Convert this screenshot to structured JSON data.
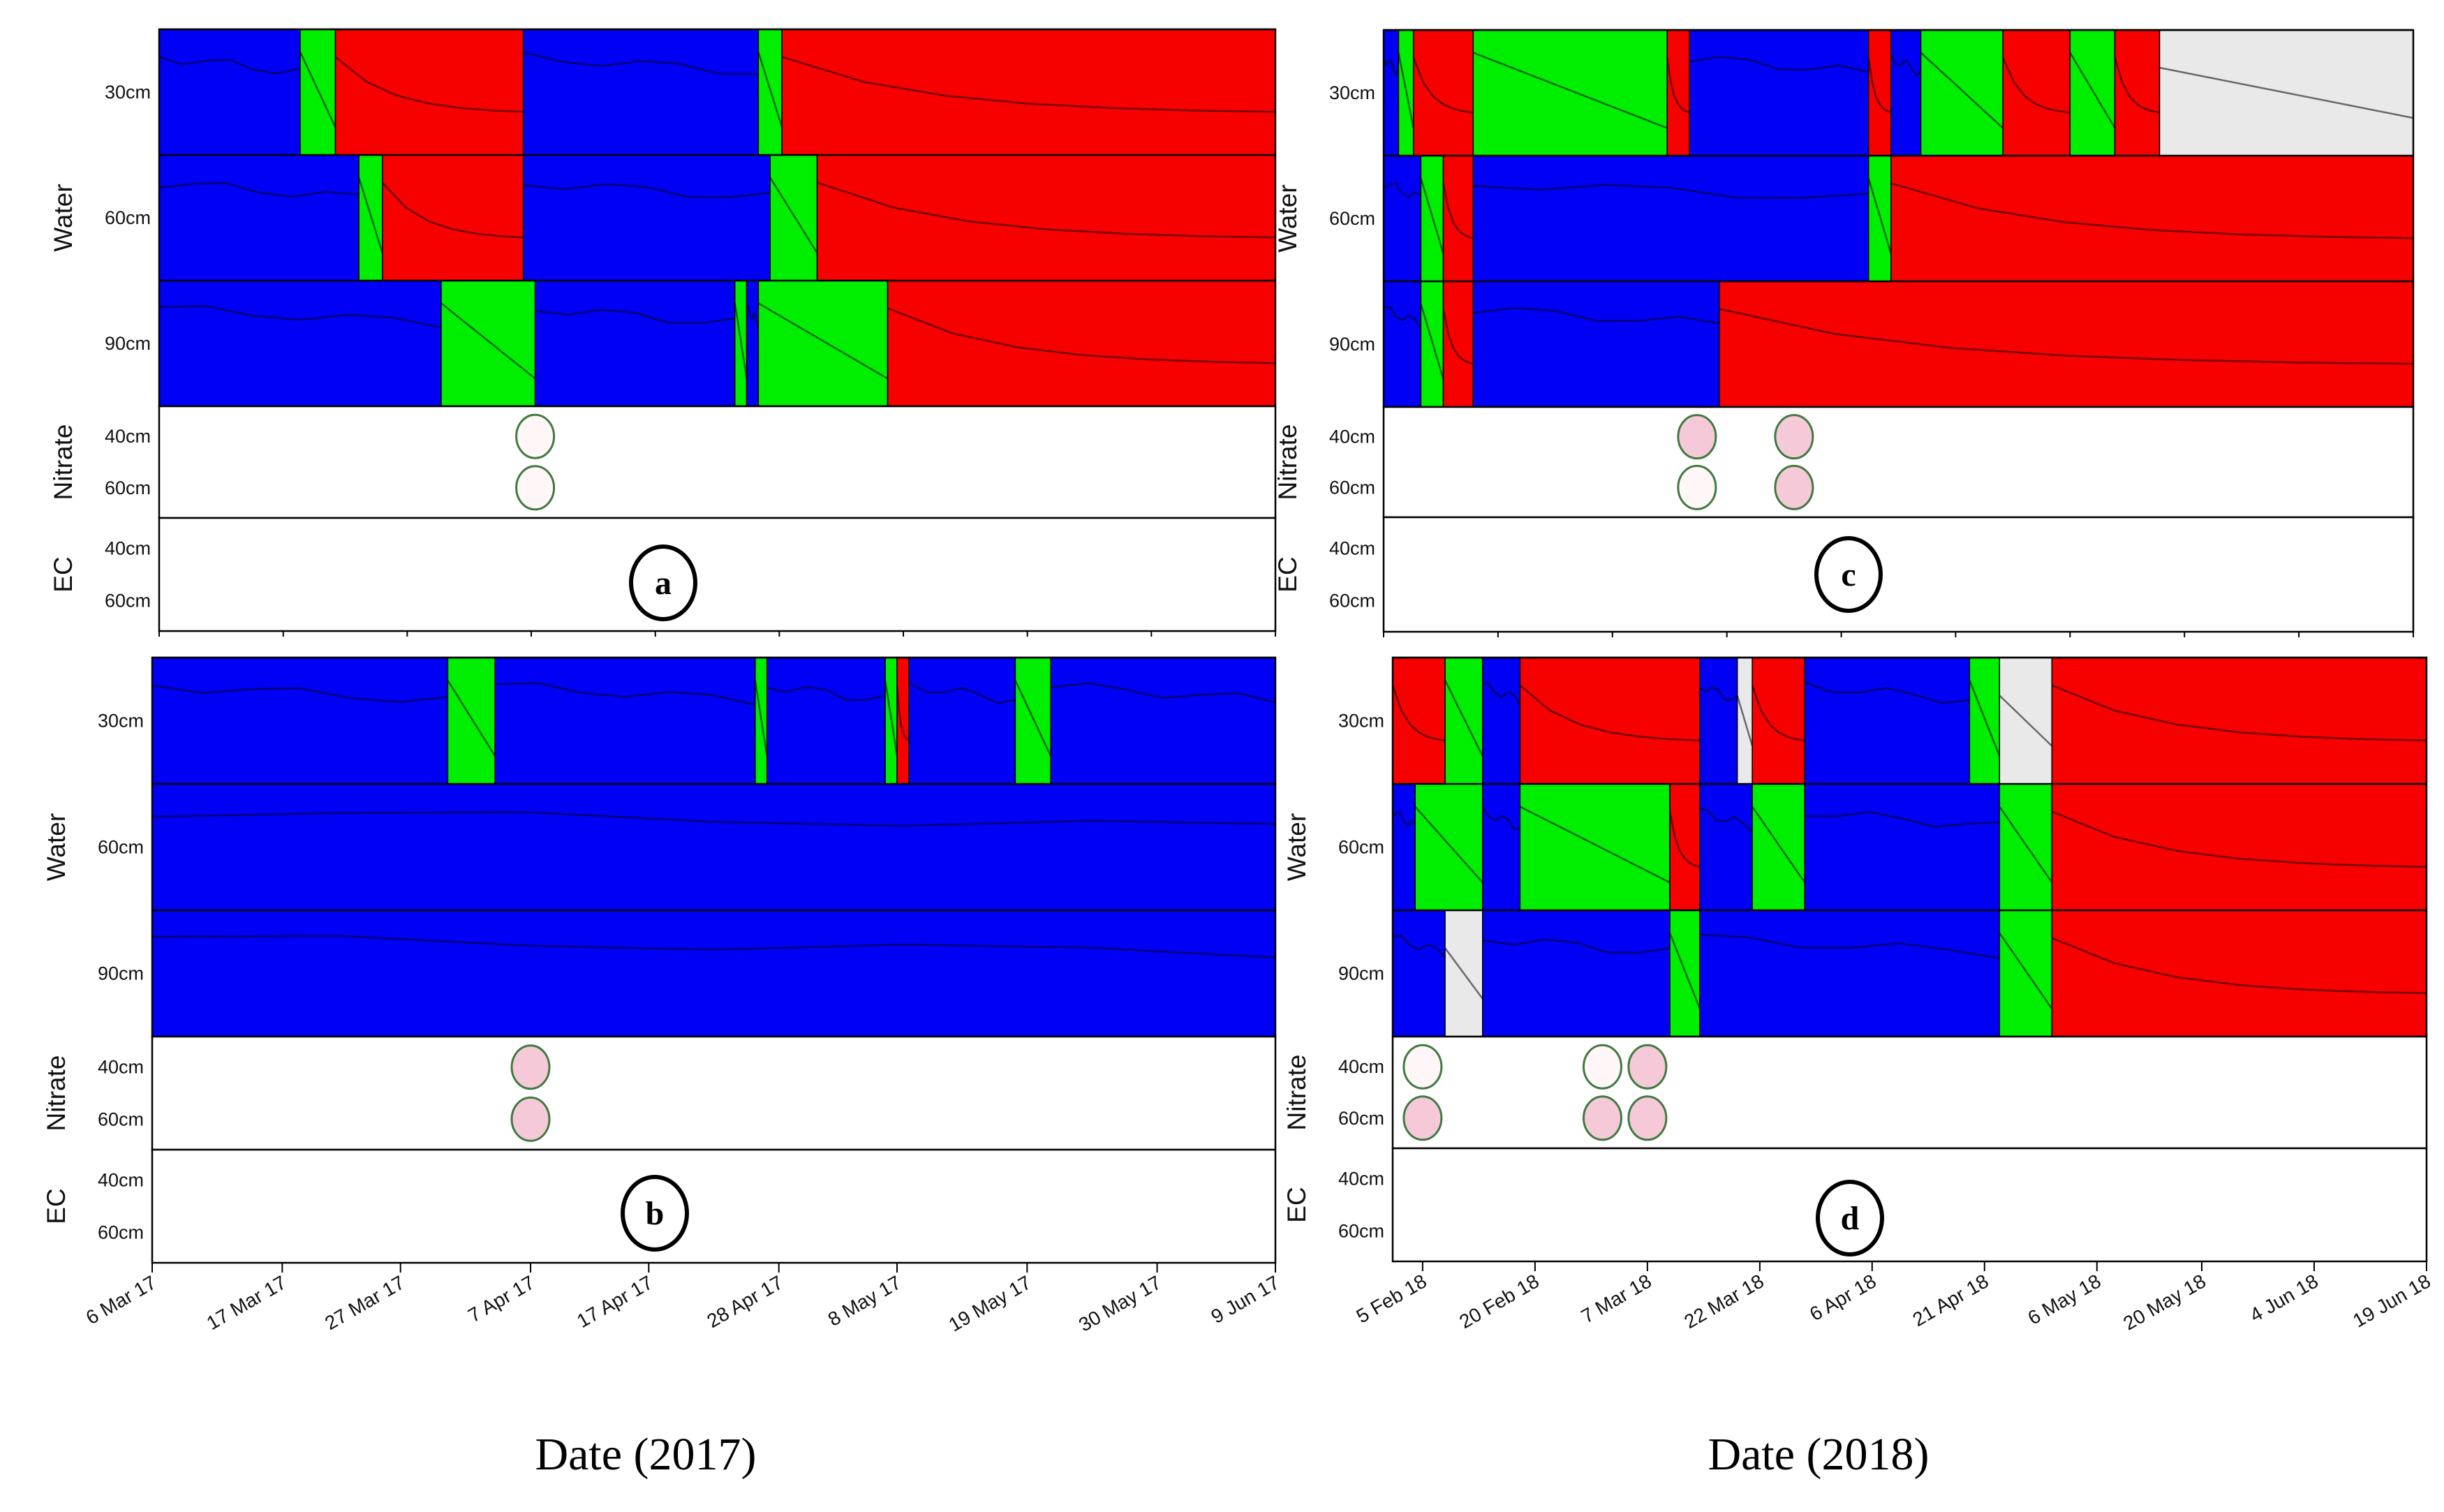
{
  "labels": {
    "water": "Water",
    "nitrate": "Nitrate",
    "ec": "EC",
    "water_depths": [
      "30cm",
      "60cm",
      "90cm"
    ],
    "sensor_depths": [
      "40cm",
      "60cm"
    ]
  },
  "colors": {
    "blue": "#0000f5",
    "green": "#00ee00",
    "red": "#f70000",
    "grey": "#e9e9e9",
    "nitrate_pink": "#f6c9d8",
    "nitrate_pale": "#fff6f8",
    "circle_stroke": "#3f7a3f"
  },
  "chart_data": [
    {
      "type": "timeline",
      "panel": "a",
      "year": 2017,
      "x_range": [
        "2017-03-06",
        "2017-06-09"
      ],
      "rows": {
        "water_30cm": [
          {
            "from": "2017-03-06",
            "to": "2017-03-18",
            "state": "blue"
          },
          {
            "from": "2017-03-18",
            "to": "2017-03-21",
            "state": "green"
          },
          {
            "from": "2017-03-21",
            "to": "2017-04-06",
            "state": "red"
          },
          {
            "from": "2017-04-06",
            "to": "2017-04-26",
            "state": "blue"
          },
          {
            "from": "2017-04-26",
            "to": "2017-04-28",
            "state": "green"
          },
          {
            "from": "2017-04-28",
            "to": "2017-06-09",
            "state": "red"
          }
        ],
        "water_60cm": [
          {
            "from": "2017-03-06",
            "to": "2017-03-23",
            "state": "blue"
          },
          {
            "from": "2017-03-23",
            "to": "2017-03-25",
            "state": "green"
          },
          {
            "from": "2017-03-25",
            "to": "2017-04-06",
            "state": "red"
          },
          {
            "from": "2017-04-06",
            "to": "2017-04-27",
            "state": "blue"
          },
          {
            "from": "2017-04-27",
            "to": "2017-05-01",
            "state": "green"
          },
          {
            "from": "2017-05-01",
            "to": "2017-06-09",
            "state": "red"
          }
        ],
        "water_90cm": [
          {
            "from": "2017-03-06",
            "to": "2017-03-30",
            "state": "blue"
          },
          {
            "from": "2017-03-30",
            "to": "2017-04-07",
            "state": "green"
          },
          {
            "from": "2017-04-07",
            "to": "2017-04-24",
            "state": "blue"
          },
          {
            "from": "2017-04-24",
            "to": "2017-04-25",
            "state": "green"
          },
          {
            "from": "2017-04-25",
            "to": "2017-04-26",
            "state": "blue"
          },
          {
            "from": "2017-04-26",
            "to": "2017-05-07",
            "state": "green"
          },
          {
            "from": "2017-05-07",
            "to": "2017-06-09",
            "state": "red"
          }
        ]
      },
      "nitrate": [
        {
          "date": "2017-04-07",
          "depth": "40cm",
          "level": "low"
        },
        {
          "date": "2017-04-07",
          "depth": "60cm",
          "level": "low"
        }
      ],
      "ec": []
    },
    {
      "type": "timeline",
      "panel": "b",
      "year": 2017,
      "x_range": [
        "2017-03-06",
        "2017-06-09"
      ],
      "x_ticks": [
        "6 Mar 17",
        "17 Mar 17",
        "27 Mar 17",
        "7 Apr 17",
        "17 Apr 17",
        "28 Apr 17",
        "8 May 17",
        "19 May 17",
        "30 May 17",
        "9 Jun 17"
      ],
      "rows": {
        "water_30cm": [
          {
            "from": "2017-03-06",
            "to": "2017-03-31",
            "state": "blue"
          },
          {
            "from": "2017-03-31",
            "to": "2017-04-04",
            "state": "green"
          },
          {
            "from": "2017-04-04",
            "to": "2017-04-26",
            "state": "blue"
          },
          {
            "from": "2017-04-26",
            "to": "2017-04-27",
            "state": "green"
          },
          {
            "from": "2017-04-27",
            "to": "2017-05-07",
            "state": "blue"
          },
          {
            "from": "2017-05-07",
            "to": "2017-05-08",
            "state": "green"
          },
          {
            "from": "2017-05-08",
            "to": "2017-05-09",
            "state": "red"
          },
          {
            "from": "2017-05-09",
            "to": "2017-05-18",
            "state": "blue"
          },
          {
            "from": "2017-05-18",
            "to": "2017-05-21",
            "state": "green"
          },
          {
            "from": "2017-05-21",
            "to": "2017-06-09",
            "state": "blue"
          }
        ],
        "water_60cm": [
          {
            "from": "2017-03-06",
            "to": "2017-06-09",
            "state": "blue"
          }
        ],
        "water_90cm": [
          {
            "from": "2017-03-06",
            "to": "2017-06-09",
            "state": "blue"
          }
        ]
      },
      "nitrate": [
        {
          "date": "2017-04-07",
          "depth": "40cm",
          "level": "high"
        },
        {
          "date": "2017-04-07",
          "depth": "60cm",
          "level": "high"
        }
      ],
      "ec": []
    },
    {
      "type": "timeline",
      "panel": "c",
      "year": 2018,
      "x_range": [
        "2018-02-01",
        "2018-06-19"
      ],
      "rows": {
        "water_30cm": [
          {
            "from": "2018-02-01",
            "to": "2018-02-03",
            "state": "blue"
          },
          {
            "from": "2018-02-03",
            "to": "2018-02-05",
            "state": "green"
          },
          {
            "from": "2018-02-05",
            "to": "2018-02-13",
            "state": "red"
          },
          {
            "from": "2018-02-13",
            "to": "2018-03-11",
            "state": "green"
          },
          {
            "from": "2018-03-11",
            "to": "2018-03-14",
            "state": "red"
          },
          {
            "from": "2018-03-14",
            "to": "2018-04-07",
            "state": "blue"
          },
          {
            "from": "2018-04-07",
            "to": "2018-04-10",
            "state": "red"
          },
          {
            "from": "2018-04-10",
            "to": "2018-04-14",
            "state": "blue"
          },
          {
            "from": "2018-04-14",
            "to": "2018-04-25",
            "state": "green"
          },
          {
            "from": "2018-04-25",
            "to": "2018-05-04",
            "state": "red"
          },
          {
            "from": "2018-05-04",
            "to": "2018-05-10",
            "state": "green"
          },
          {
            "from": "2018-05-10",
            "to": "2018-05-16",
            "state": "red"
          },
          {
            "from": "2018-05-16",
            "to": "2018-06-19",
            "state": "grey"
          }
        ],
        "water_60cm": [
          {
            "from": "2018-02-01",
            "to": "2018-02-06",
            "state": "blue"
          },
          {
            "from": "2018-02-06",
            "to": "2018-02-09",
            "state": "green"
          },
          {
            "from": "2018-02-09",
            "to": "2018-02-13",
            "state": "red"
          },
          {
            "from": "2018-02-13",
            "to": "2018-04-07",
            "state": "blue"
          },
          {
            "from": "2018-04-07",
            "to": "2018-04-10",
            "state": "green"
          },
          {
            "from": "2018-04-10",
            "to": "2018-06-19",
            "state": "red"
          }
        ],
        "water_90cm": [
          {
            "from": "2018-02-01",
            "to": "2018-02-06",
            "state": "blue"
          },
          {
            "from": "2018-02-06",
            "to": "2018-02-09",
            "state": "green"
          },
          {
            "from": "2018-02-09",
            "to": "2018-02-13",
            "state": "red"
          },
          {
            "from": "2018-02-13",
            "to": "2018-03-18",
            "state": "blue"
          },
          {
            "from": "2018-03-18",
            "to": "2018-06-19",
            "state": "red"
          }
        ]
      },
      "nitrate": [
        {
          "date": "2018-03-15",
          "depth": "40cm",
          "level": "high"
        },
        {
          "date": "2018-03-15",
          "depth": "60cm",
          "level": "low"
        },
        {
          "date": "2018-03-28",
          "depth": "40cm",
          "level": "high"
        },
        {
          "date": "2018-03-28",
          "depth": "60cm",
          "level": "high"
        }
      ],
      "ec": []
    },
    {
      "type": "timeline",
      "panel": "d",
      "year": 2018,
      "x_range": [
        "2018-02-01",
        "2018-06-19"
      ],
      "x_ticks": [
        "5 Feb 18",
        "20 Feb 18",
        "7 Mar 18",
        "22 Mar 18",
        "6 Apr 18",
        "21 Apr 18",
        "6 May 18",
        "20 May 18",
        "4 Jun 18",
        "19 Jun 18"
      ],
      "rows": {
        "water_30cm": [
          {
            "from": "2018-02-01",
            "to": "2018-02-08",
            "state": "red"
          },
          {
            "from": "2018-02-08",
            "to": "2018-02-13",
            "state": "green"
          },
          {
            "from": "2018-02-13",
            "to": "2018-02-18",
            "state": "blue"
          },
          {
            "from": "2018-02-18",
            "to": "2018-03-14",
            "state": "red"
          },
          {
            "from": "2018-03-14",
            "to": "2018-03-19",
            "state": "blue"
          },
          {
            "from": "2018-03-19",
            "to": "2018-03-21",
            "state": "grey"
          },
          {
            "from": "2018-03-21",
            "to": "2018-03-28",
            "state": "red"
          },
          {
            "from": "2018-03-28",
            "to": "2018-04-19",
            "state": "blue"
          },
          {
            "from": "2018-04-19",
            "to": "2018-04-23",
            "state": "green"
          },
          {
            "from": "2018-04-23",
            "to": "2018-04-30",
            "state": "grey"
          },
          {
            "from": "2018-04-30",
            "to": "2018-06-19",
            "state": "red"
          }
        ],
        "water_60cm": [
          {
            "from": "2018-02-01",
            "to": "2018-02-04",
            "state": "blue"
          },
          {
            "from": "2018-02-04",
            "to": "2018-02-13",
            "state": "green"
          },
          {
            "from": "2018-02-13",
            "to": "2018-02-18",
            "state": "blue"
          },
          {
            "from": "2018-02-18",
            "to": "2018-03-10",
            "state": "green"
          },
          {
            "from": "2018-03-10",
            "to": "2018-03-14",
            "state": "red"
          },
          {
            "from": "2018-03-14",
            "to": "2018-03-21",
            "state": "blue"
          },
          {
            "from": "2018-03-21",
            "to": "2018-03-28",
            "state": "green"
          },
          {
            "from": "2018-03-28",
            "to": "2018-04-23",
            "state": "blue"
          },
          {
            "from": "2018-04-23",
            "to": "2018-04-30",
            "state": "green"
          },
          {
            "from": "2018-04-30",
            "to": "2018-06-19",
            "state": "red"
          }
        ],
        "water_90cm": [
          {
            "from": "2018-02-01",
            "to": "2018-02-08",
            "state": "blue"
          },
          {
            "from": "2018-02-08",
            "to": "2018-02-13",
            "state": "grey"
          },
          {
            "from": "2018-02-13",
            "to": "2018-03-10",
            "state": "blue"
          },
          {
            "from": "2018-03-10",
            "to": "2018-03-14",
            "state": "green"
          },
          {
            "from": "2018-03-14",
            "to": "2018-04-23",
            "state": "blue"
          },
          {
            "from": "2018-04-23",
            "to": "2018-04-30",
            "state": "green"
          },
          {
            "from": "2018-04-30",
            "to": "2018-06-19",
            "state": "red"
          }
        ]
      },
      "nitrate": [
        {
          "date": "2018-02-05",
          "depth": "40cm",
          "level": "low"
        },
        {
          "date": "2018-02-05",
          "depth": "60cm",
          "level": "high"
        },
        {
          "date": "2018-03-01",
          "depth": "40cm",
          "level": "low"
        },
        {
          "date": "2018-03-01",
          "depth": "60cm",
          "level": "high"
        },
        {
          "date": "2018-03-07",
          "depth": "40cm",
          "level": "high"
        },
        {
          "date": "2018-03-07",
          "depth": "60cm",
          "level": "high"
        }
      ],
      "ec": []
    }
  ],
  "x_axis_labels": [
    "Date (2017)",
    "Date (2018)"
  ]
}
